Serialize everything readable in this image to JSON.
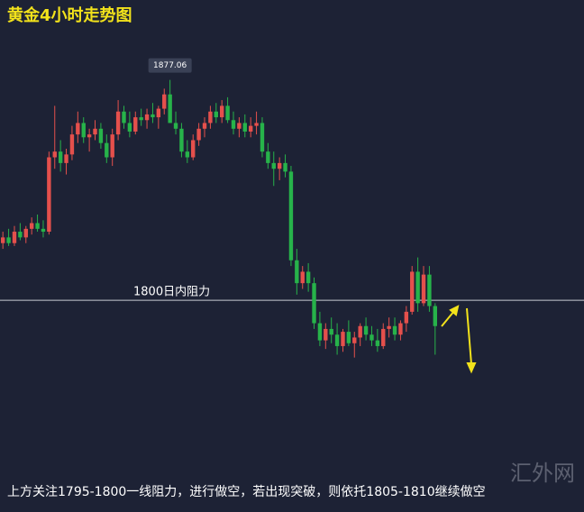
{
  "chart_data": {
    "type": "candlestick",
    "title": "黄金4小时走势图",
    "open": [
      1820,
      1822,
      1820,
      1824,
      1822,
      1825,
      1827,
      1825,
      1824,
      1850,
      1852,
      1848,
      1851,
      1858,
      1862,
      1857,
      1858,
      1860,
      1855,
      1850,
      1858,
      1866,
      1862,
      1859,
      1864,
      1863,
      1865,
      1864,
      1867,
      1872,
      1862,
      1860,
      1852,
      1850,
      1856,
      1860,
      1862,
      1866,
      1864,
      1868,
      1863,
      1860,
      1862,
      1859,
      1861,
      1862,
      1852,
      1848,
      1846,
      1848,
      1845,
      1814,
      1806,
      1810,
      1806,
      1792,
      1786,
      1790,
      1788,
      1784,
      1789,
      1785,
      1787,
      1791,
      1788,
      1786,
      1784,
      1790,
      1791,
      1788,
      1792,
      1796,
      1810,
      1799,
      1809,
      1798
    ],
    "high": [
      1824,
      1825,
      1826,
      1827,
      1826,
      1829,
      1830,
      1828,
      1852,
      1868,
      1856,
      1853,
      1861,
      1866,
      1864,
      1860,
      1863,
      1862,
      1858,
      1860,
      1870,
      1868,
      1866,
      1866,
      1867,
      1867,
      1869,
      1868,
      1874,
      1877.06,
      1866,
      1862,
      1856,
      1858,
      1862,
      1864,
      1868,
      1869,
      1870,
      1871,
      1866,
      1864,
      1865,
      1864,
      1866,
      1864,
      1855,
      1852,
      1850,
      1851,
      1847,
      1818,
      1812,
      1813,
      1808,
      1796,
      1792,
      1794,
      1792,
      1790,
      1793,
      1789,
      1792,
      1794,
      1791,
      1790,
      1792,
      1794,
      1794,
      1793,
      1798,
      1812,
      1815,
      1812,
      1812,
      1799
    ],
    "low": [
      1818,
      1819,
      1819,
      1821,
      1820,
      1823,
      1824,
      1822,
      1823,
      1846,
      1845,
      1844,
      1849,
      1855,
      1855,
      1852,
      1856,
      1853,
      1848,
      1847,
      1856,
      1860,
      1857,
      1858,
      1861,
      1860,
      1862,
      1860,
      1865,
      1862,
      1858,
      1850,
      1848,
      1849,
      1854,
      1857,
      1860,
      1862,
      1862,
      1862,
      1858,
      1857,
      1857,
      1857,
      1858,
      1850,
      1846,
      1840,
      1842,
      1843,
      1812,
      1802,
      1804,
      1803,
      1790,
      1784,
      1783,
      1785,
      1781,
      1782,
      1784,
      1780,
      1784,
      1786,
      1784,
      1782,
      1783,
      1787,
      1786,
      1786,
      1789,
      1795,
      1796,
      1798,
      1796,
      1781
    ],
    "close": [
      1822,
      1820,
      1824,
      1822,
      1825,
      1827,
      1825,
      1824,
      1850,
      1852,
      1848,
      1851,
      1858,
      1862,
      1857,
      1858,
      1860,
      1855,
      1850,
      1858,
      1866,
      1862,
      1859,
      1864,
      1863,
      1865,
      1864,
      1867,
      1872,
      1862,
      1860,
      1852,
      1850,
      1856,
      1860,
      1862,
      1866,
      1864,
      1868,
      1863,
      1860,
      1862,
      1859,
      1861,
      1862,
      1852,
      1848,
      1846,
      1848,
      1845,
      1814,
      1806,
      1810,
      1806,
      1792,
      1786,
      1790,
      1788,
      1784,
      1789,
      1785,
      1787,
      1791,
      1788,
      1786,
      1784,
      1790,
      1791,
      1788,
      1792,
      1796,
      1810,
      1799,
      1809,
      1798,
      1791
    ],
    "up_color": "#e5504c",
    "down_color": "#27b34a",
    "ylim": [
      1726,
      1905
    ],
    "hline": {
      "value": 1800,
      "label": "1800日内阻力"
    },
    "caption": "上方关注1795-1800一线阻力，进行做空，若出现突破，则依托1805-1810继续做空",
    "watermark": "汇外网"
  }
}
